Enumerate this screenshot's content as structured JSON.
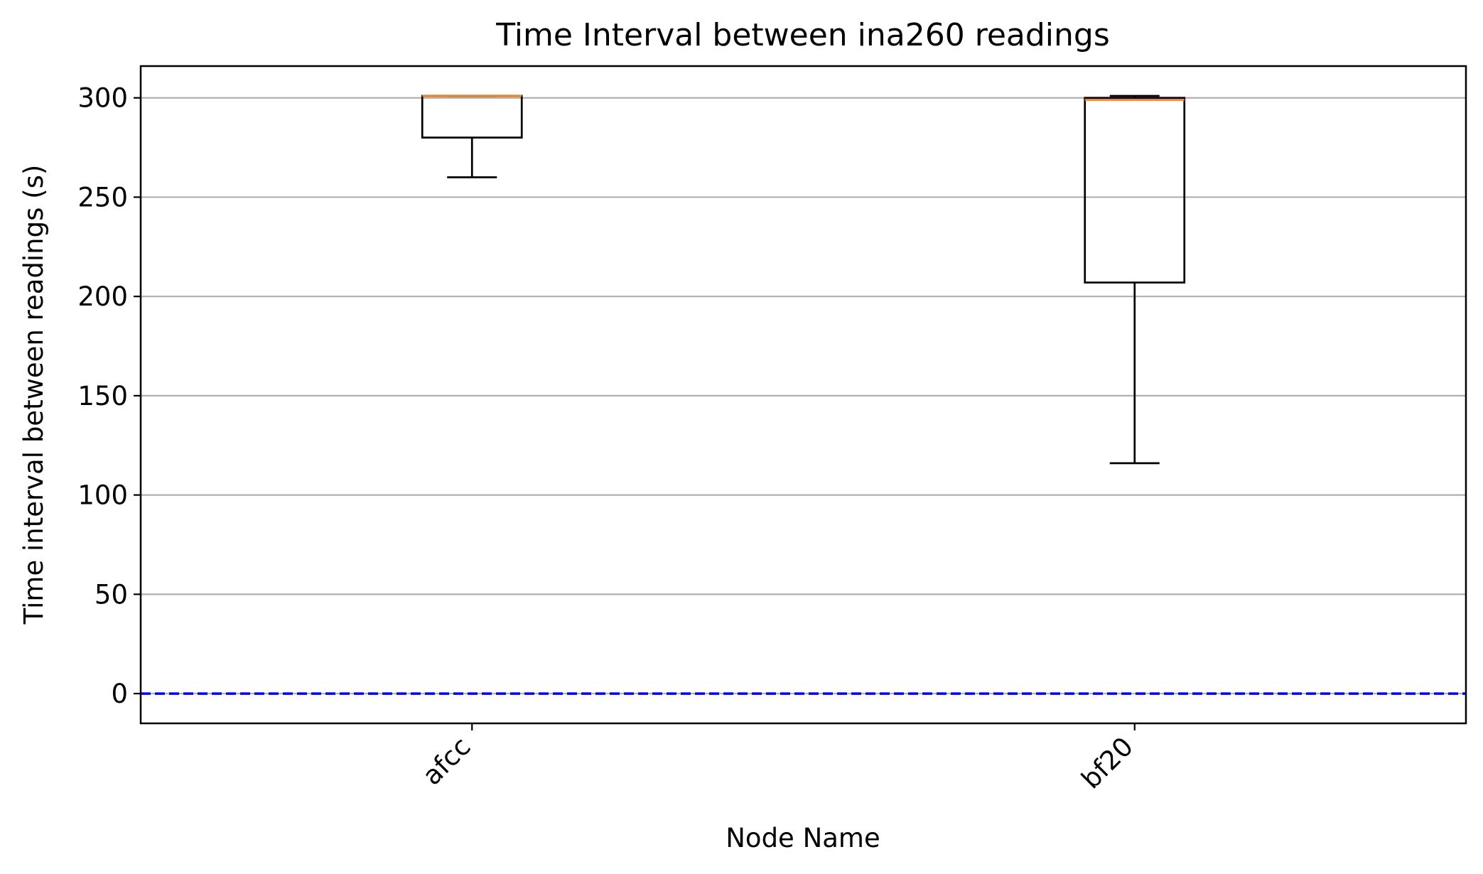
{
  "chart_data": {
    "type": "box",
    "title": "Time Interval between ina260 readings",
    "xlabel": "Node Name",
    "ylabel": "Time interval between readings (s)",
    "ylim": [
      -15,
      316
    ],
    "yticks": [
      0,
      50,
      100,
      150,
      200,
      250,
      300
    ],
    "grid": "horizontal",
    "categories": [
      "afcc",
      "bf20"
    ],
    "boxes": [
      {
        "name": "afcc",
        "whislo": 260,
        "q1": 280,
        "med": 301,
        "q3": 301,
        "whishi": 301
      },
      {
        "name": "bf20",
        "whislo": 116,
        "q1": 207,
        "med": 299,
        "q3": 300,
        "whishi": 301
      }
    ],
    "reference_line": {
      "y": 0,
      "color": "#0000ff",
      "style": "dashed"
    },
    "colors": {
      "box": "#000000",
      "median": "#ff7f0e",
      "grid": "#b0b0b0"
    }
  }
}
